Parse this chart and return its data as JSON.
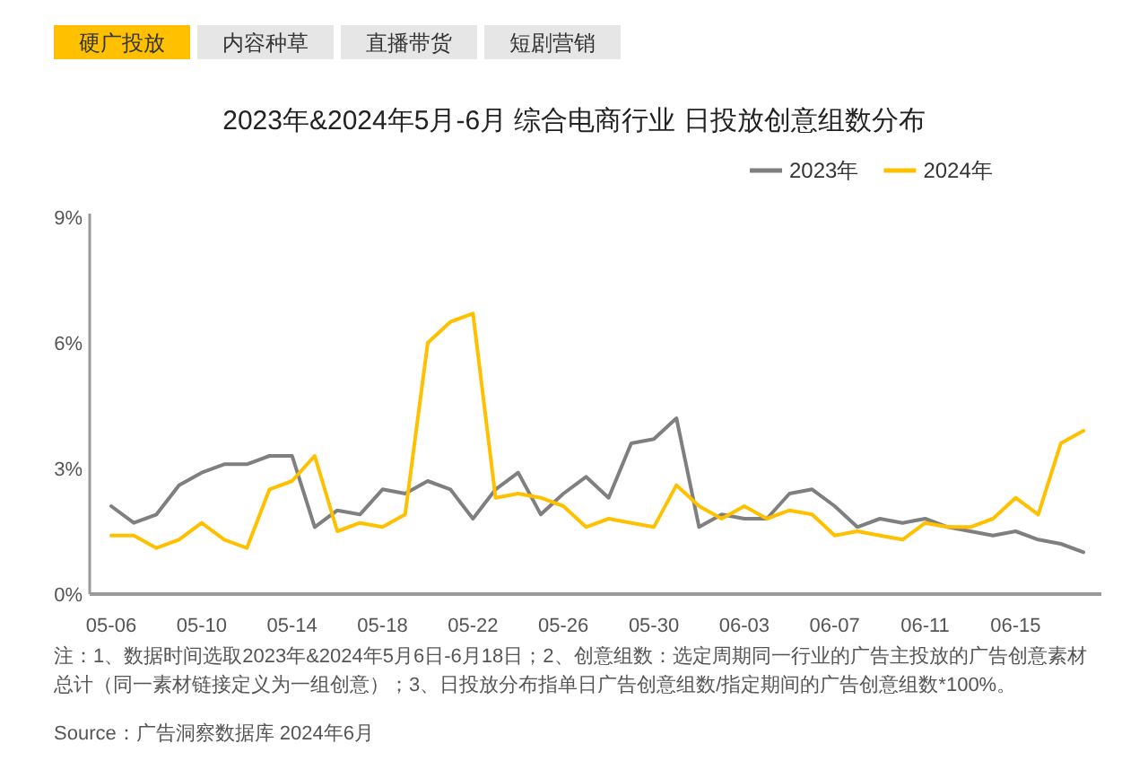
{
  "chart_data": {
    "type": "line",
    "title": "2023年&2024年5月-6月 综合电商行业 日投放创意组数分布",
    "categories": [
      "05-06",
      null,
      null,
      null,
      "05-10",
      null,
      null,
      null,
      "05-14",
      null,
      null,
      null,
      "05-18",
      null,
      null,
      null,
      "05-22",
      null,
      null,
      null,
      "05-26",
      null,
      null,
      null,
      "05-30",
      null,
      null,
      null,
      "06-03",
      null,
      null,
      null,
      "06-07",
      null,
      null,
      null,
      "06-11",
      null,
      null,
      null,
      "06-15",
      null,
      null,
      null
    ],
    "series": [
      {
        "name": "2023年",
        "color": "#7f7f7f",
        "values": [
          2.1,
          1.7,
          1.9,
          2.6,
          2.9,
          3.1,
          3.1,
          3.3,
          3.3,
          1.6,
          2.0,
          1.9,
          2.5,
          2.4,
          2.7,
          2.5,
          1.8,
          2.5,
          2.9,
          1.9,
          2.4,
          2.8,
          2.3,
          3.6,
          3.7,
          4.2,
          1.6,
          1.9,
          1.8,
          1.8,
          2.4,
          2.5,
          2.1,
          1.6,
          1.8,
          1.7,
          1.8,
          1.6,
          1.5,
          1.4,
          1.5,
          1.3,
          1.2,
          1.0
        ]
      },
      {
        "name": "2024年",
        "color": "#ffc000",
        "values": [
          1.4,
          1.4,
          1.1,
          1.3,
          1.7,
          1.3,
          1.1,
          2.5,
          2.7,
          3.3,
          1.5,
          1.7,
          1.6,
          1.9,
          6.0,
          6.5,
          6.7,
          2.3,
          2.4,
          2.3,
          2.1,
          1.6,
          1.8,
          1.7,
          1.6,
          2.6,
          2.1,
          1.8,
          2.1,
          1.8,
          2.0,
          1.9,
          1.4,
          1.5,
          1.4,
          1.3,
          1.7,
          1.6,
          1.6,
          1.8,
          2.3,
          1.9,
          3.6,
          3.9
        ]
      }
    ],
    "ylim": [
      0,
      9
    ],
    "yticks": [
      {
        "value": 0,
        "label": "0%"
      },
      {
        "value": 3,
        "label": "3%"
      },
      {
        "value": 6,
        "label": "6%"
      },
      {
        "value": 9,
        "label": "9%"
      }
    ],
    "legend": "top right",
    "marker": "none",
    "line_style": "solid",
    "annotations": [
      "硬广投放",
      "内容种草",
      "直播带货",
      "短剧营销",
      "注：1、数据时间选取2023年&2024年5月6日-6月18日；2、创意组数：选定周期同一行业的广告主投放的广告创意素材总计（同一素材链接定义为一组创意）；3、日投放分布指单日广告创意组数/指定期间的广告创意组数*100%。",
      "Source：广告洞察数据库 2024年6月"
    ]
  }
}
